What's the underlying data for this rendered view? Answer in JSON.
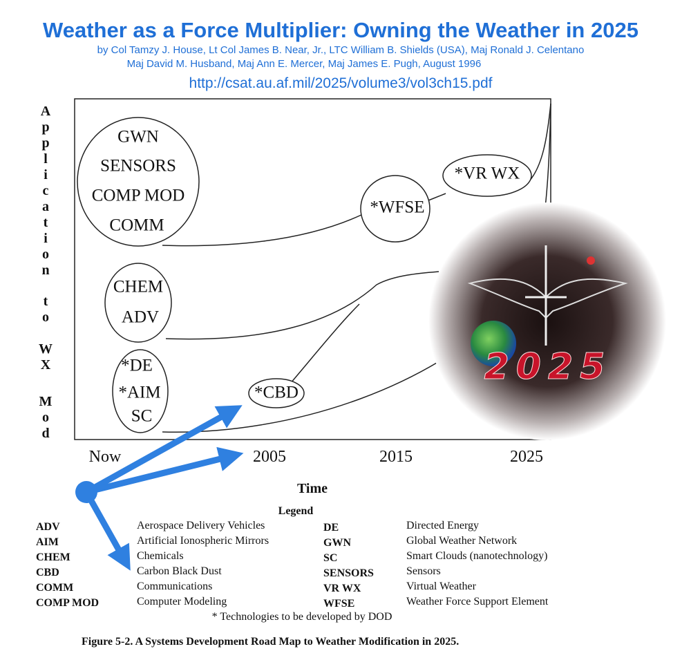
{
  "header": {
    "title": "Weather as a Force Multiplier: Owning the Weather in 2025",
    "authors_line1": "by Col Tamzy J. House, Lt Col James B. Near, Jr., LTC William B. Shields (USA), Maj Ronald J. Celentano",
    "authors_line2": "Maj David M. Husband, Maj Ann E. Mercer, Maj James E. Pugh, August 1996",
    "url": "http://csat.au.af.mil/2025/volume3/vol3ch15.pdf"
  },
  "diagram": {
    "y_axis_label": [
      "Application",
      "to",
      "WX",
      "Mod"
    ],
    "x_axis_ticks": [
      "Now",
      "2005",
      "2015",
      "2025"
    ],
    "x_axis_label": "Time",
    "nodes": [
      {
        "lines": [
          "GWN",
          "SENSORS",
          "COMP MOD",
          "COMM"
        ]
      },
      {
        "lines": [
          "CHEM",
          "ADV"
        ]
      },
      {
        "lines": [
          "*DE",
          "*AIM",
          "SC"
        ]
      },
      {
        "lines": [
          "*CBD"
        ]
      },
      {
        "lines": [
          "*WFSE"
        ]
      },
      {
        "lines": [
          "*VR WX"
        ]
      }
    ],
    "logo_text": "2025"
  },
  "legend": {
    "title": "Legend",
    "entries": [
      {
        "abbr": "ADV",
        "meaning": "Aerospace Delivery Vehicles"
      },
      {
        "abbr": "AIM",
        "meaning": "Artificial Ionospheric Mirrors"
      },
      {
        "abbr": "CHEM",
        "meaning": "Chemicals"
      },
      {
        "abbr": "CBD",
        "meaning": "Carbon Black Dust"
      },
      {
        "abbr": "COMM",
        "meaning": "Communications"
      },
      {
        "abbr": "COMP MOD",
        "meaning": "Computer Modeling"
      },
      {
        "abbr": "DE",
        "meaning": "Directed Energy"
      },
      {
        "abbr": "GWN",
        "meaning": "Global Weather Network"
      },
      {
        "abbr": "SC",
        "meaning": "Smart Clouds (nanotechnology)"
      },
      {
        "abbr": "SENSORS",
        "meaning": "Sensors"
      },
      {
        "abbr": "VR WX",
        "meaning": "Virtual Weather"
      },
      {
        "abbr": "WFSE",
        "meaning": "Weather Force Support Element"
      }
    ],
    "note": "* Technologies to be developed by DOD"
  },
  "caption": "Figure 5-2.  A Systems Development Road Map to Weather Modification in 2025."
}
